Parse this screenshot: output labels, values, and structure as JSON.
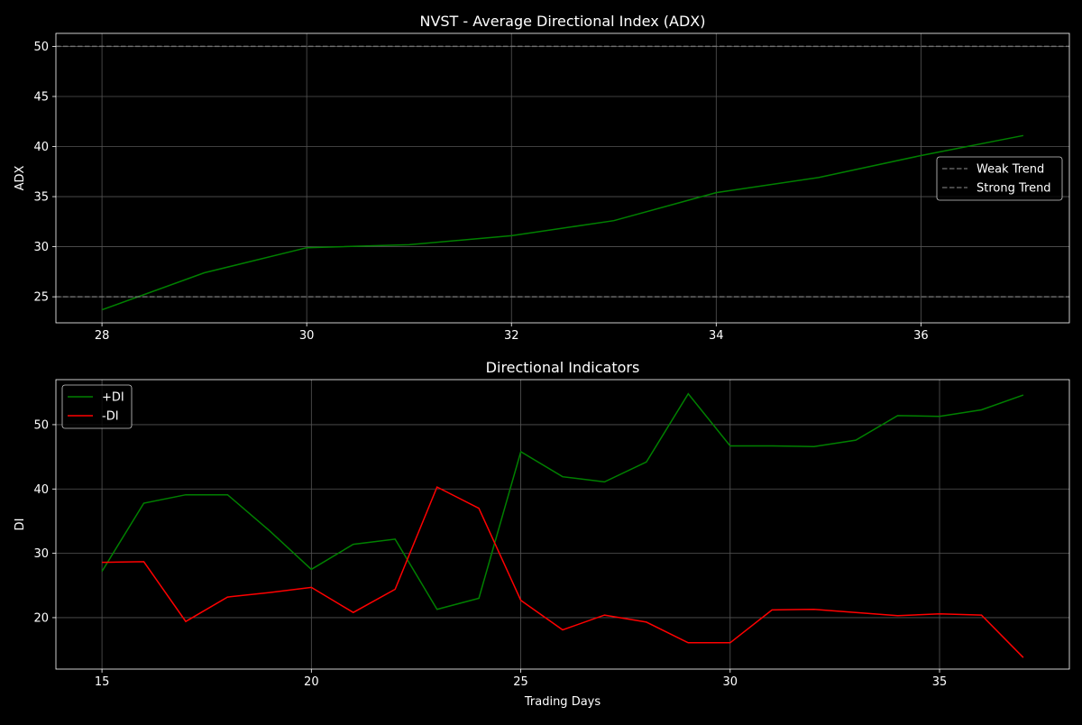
{
  "figure": {
    "background": "#000000"
  },
  "chart_data": [
    {
      "type": "line",
      "title": "NVST - Average Directional Index (ADX)",
      "xlabel": "",
      "ylabel": "ADX",
      "xlim": [
        27.55,
        37.45
      ],
      "ylim": [
        22.4,
        51.3
      ],
      "xticks": [
        28,
        30,
        32,
        34,
        36
      ],
      "yticks": [
        25,
        30,
        35,
        40,
        45,
        50
      ],
      "grid": true,
      "legend_position": "center-right",
      "series": [
        {
          "name": "ADX",
          "color": "#008000",
          "style": "solid",
          "in_legend": false,
          "x": [
            28,
            29,
            30,
            31,
            32,
            33,
            34,
            35,
            36,
            37
          ],
          "values": [
            23.7,
            27.4,
            29.9,
            30.2,
            31.1,
            32.6,
            35.4,
            36.9,
            39.1,
            41.1
          ]
        },
        {
          "name": "Weak Trend",
          "color": "#808080",
          "style": "dashed",
          "in_legend": true,
          "x": [
            27.55,
            37.45
          ],
          "values": [
            25,
            25
          ]
        },
        {
          "name": "Strong Trend",
          "color": "#808080",
          "style": "dashed",
          "in_legend": true,
          "x": [
            27.55,
            37.45
          ],
          "values": [
            50,
            50
          ]
        }
      ]
    },
    {
      "type": "line",
      "title": "Directional Indicators",
      "xlabel": "Trading Days",
      "ylabel": "DI",
      "xlim": [
        13.9,
        38.1
      ],
      "ylim": [
        12.0,
        57.0
      ],
      "xticks": [
        15,
        20,
        25,
        30,
        35
      ],
      "yticks": [
        20,
        30,
        40,
        50
      ],
      "grid": true,
      "legend_position": "upper-left",
      "series": [
        {
          "name": "+DI",
          "color": "#008000",
          "style": "solid",
          "in_legend": true,
          "x": [
            15,
            16,
            17,
            18,
            19,
            20,
            21,
            22,
            23,
            24,
            25,
            26,
            27,
            28,
            29,
            30,
            31,
            32,
            33,
            34,
            35,
            36,
            37
          ],
          "values": [
            27.2,
            37.8,
            39.1,
            39.1,
            33.5,
            27.5,
            31.4,
            32.2,
            21.3,
            23.0,
            45.8,
            41.9,
            41.1,
            44.2,
            54.8,
            46.7,
            46.7,
            46.6,
            47.6,
            51.4,
            51.3,
            52.3,
            54.6
          ]
        },
        {
          "name": "-DI",
          "color": "#ff0000",
          "style": "solid",
          "in_legend": true,
          "x": [
            15,
            16,
            17,
            18,
            19,
            20,
            21,
            22,
            23,
            24,
            25,
            26,
            27,
            28,
            29,
            30,
            31,
            32,
            33,
            34,
            35,
            36,
            37
          ],
          "values": [
            28.6,
            28.7,
            19.4,
            23.2,
            23.9,
            24.7,
            20.8,
            24.4,
            40.3,
            37.0,
            22.7,
            18.1,
            20.4,
            19.3,
            16.1,
            16.1,
            21.2,
            21.3,
            20.8,
            20.3,
            20.6,
            20.4,
            13.8
          ]
        }
      ]
    }
  ]
}
